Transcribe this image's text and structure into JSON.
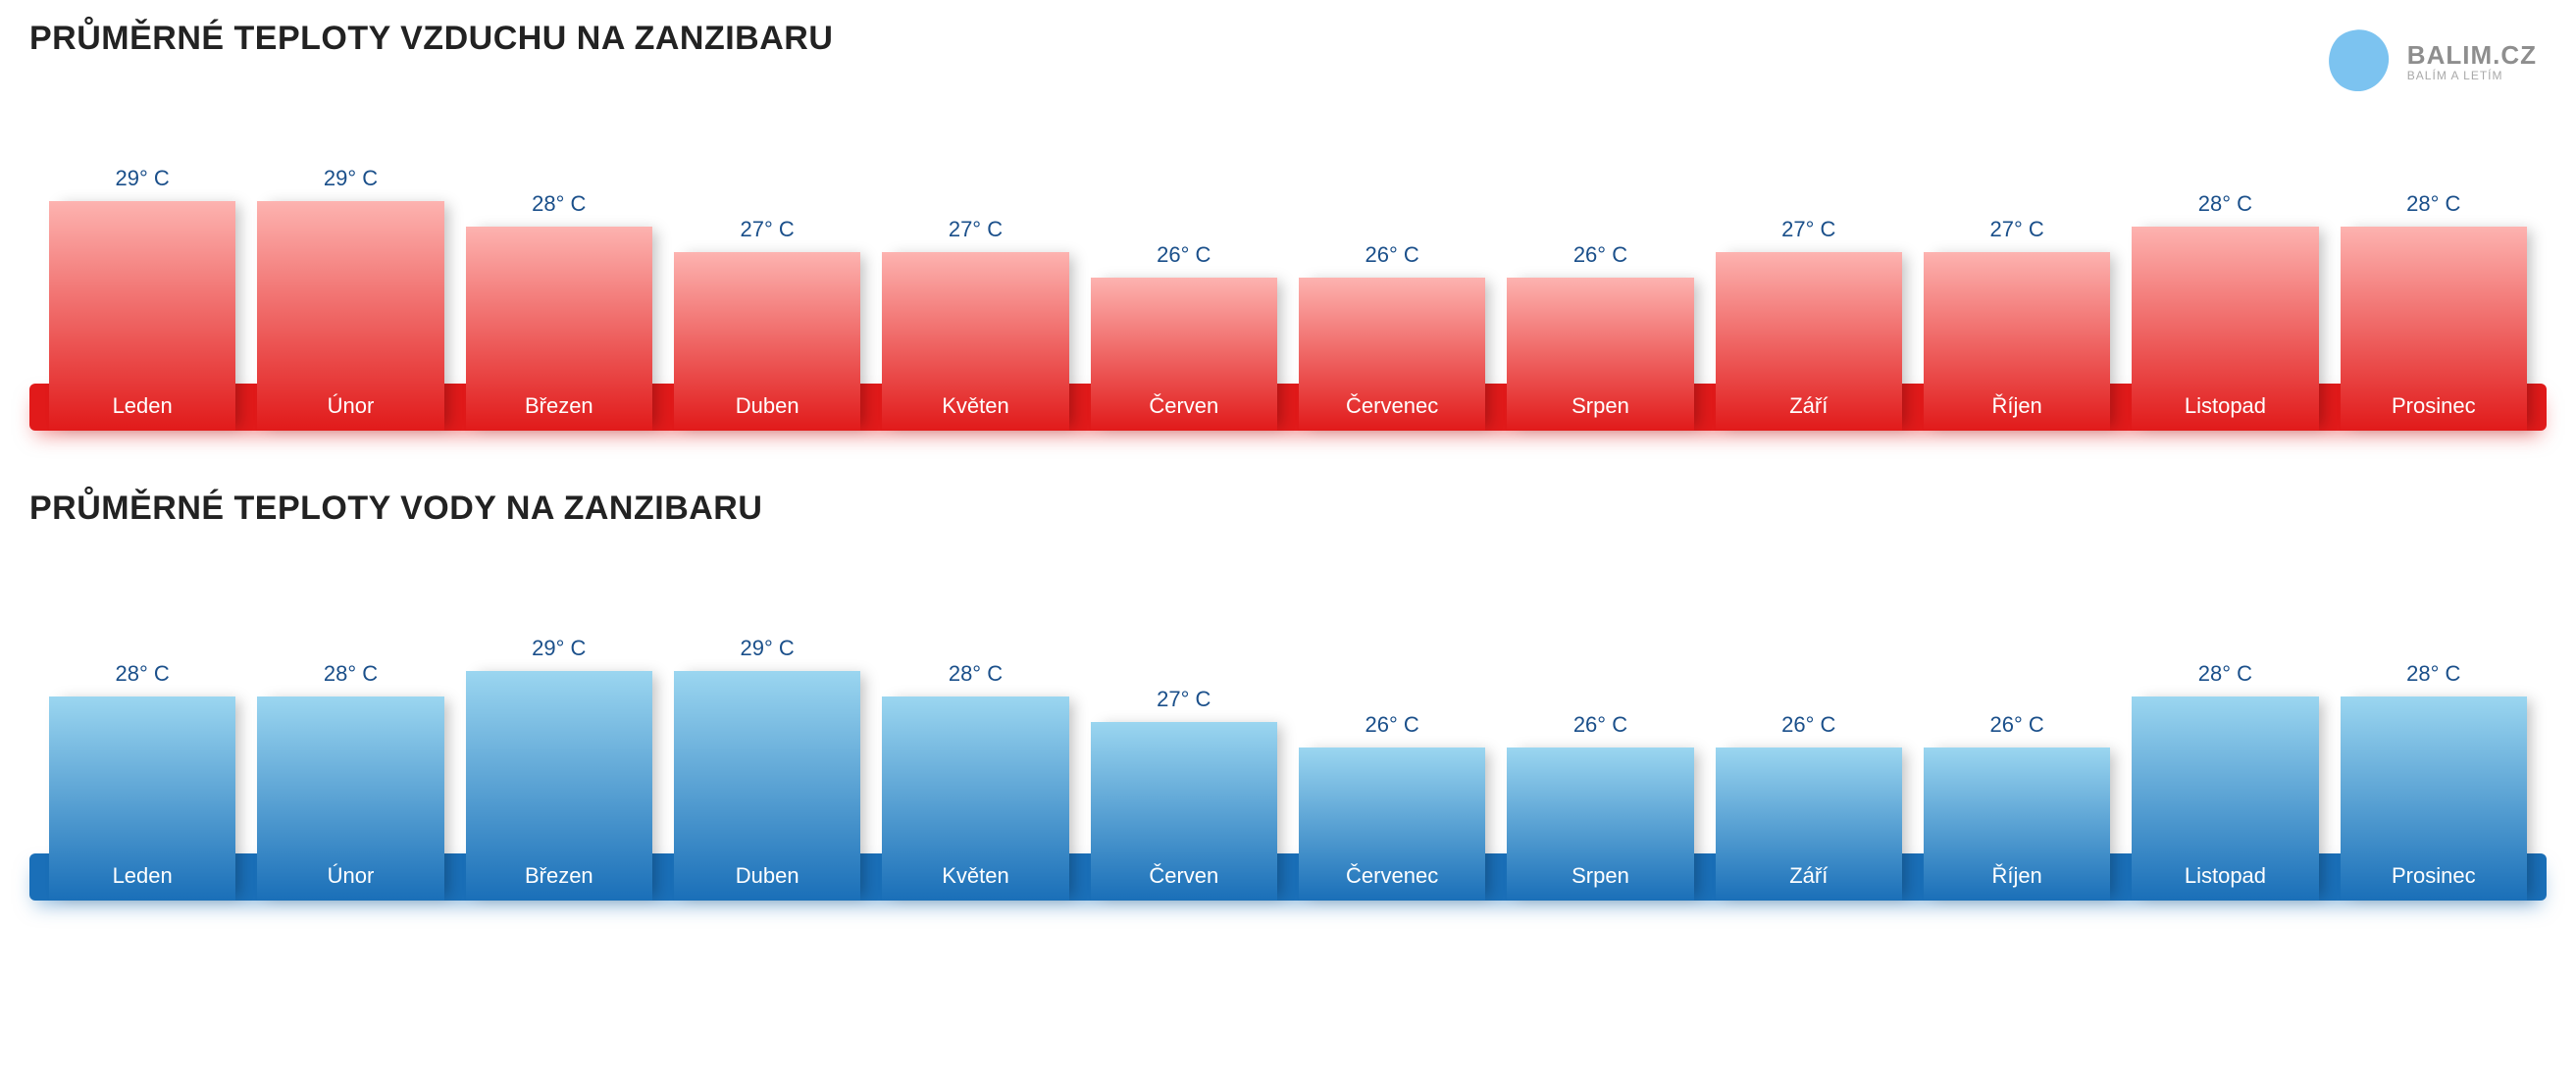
{
  "logo": {
    "main": "BALIM.CZ",
    "sub": "BALÍM A LETÍM",
    "blob_color": "#7cc3f0"
  },
  "months": [
    "Leden",
    "Únor",
    "Březen",
    "Duben",
    "Květen",
    "Červen",
    "Červenec",
    "Srpen",
    "Září",
    "Říjen",
    "Listopad",
    "Prosinec"
  ],
  "air_chart": {
    "title": "PRŮMĚRNÉ TEPLOTY VZDUCHU NA ZANZIBARU",
    "values": [
      29,
      29,
      28,
      27,
      27,
      26,
      26,
      26,
      27,
      27,
      28,
      28
    ],
    "value_suffix": "° C",
    "value_color": "#1a4f8a",
    "bar_gradient_top": "#fdb3b0",
    "bar_gradient_bottom": "#e11a1a",
    "baseline_color": "#e11a1a",
    "baseline_shadow": "0 10px 20px -6px rgba(225,26,26,0.5)",
    "label_color": "#ffffff",
    "min_scale": 20,
    "max_scale": 30,
    "bar_area_height": 260
  },
  "water_chart": {
    "title": "PRŮMĚRNÉ TEPLOTY VODY NA ZANZIBARU",
    "values": [
      28,
      28,
      29,
      29,
      28,
      27,
      26,
      26,
      26,
      26,
      28,
      28
    ],
    "value_suffix": "° C",
    "value_color": "#1a4f8a",
    "bar_gradient_top": "#9bd6f0",
    "bar_gradient_bottom": "#1a6fb8",
    "baseline_color": "#1a6fb8",
    "baseline_shadow": "0 10px 20px -6px rgba(26,111,184,0.5)",
    "label_color": "#ffffff",
    "min_scale": 20,
    "max_scale": 30,
    "bar_area_height": 260
  }
}
